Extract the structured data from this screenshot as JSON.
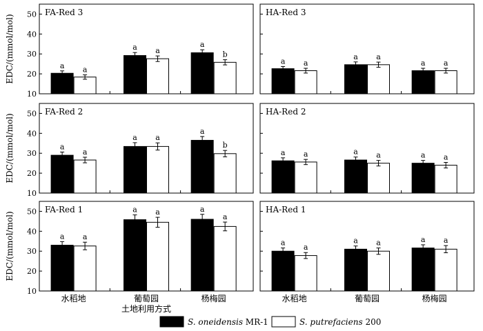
{
  "figure": {
    "y_axis_label": "EDC/(mmol/mol)",
    "x_axis_label": "土地利用方式",
    "legend": [
      {
        "name": "S. oneidensis MR-1",
        "color": "#000000",
        "italic_part": "S. oneidensis",
        "plain_part": " MR-1"
      },
      {
        "name": "S. putrefaciens 200",
        "color": "#ffffff",
        "italic_part": "S. putrefaciens",
        "plain_part": " 200"
      }
    ]
  },
  "chart_data": [
    {
      "type": "bar",
      "title": "FA-Red 3",
      "categories": [
        "水稻地",
        "葡萄园",
        "杨梅园"
      ],
      "ylim": [
        10,
        55
      ],
      "yticks": [
        10,
        20,
        30,
        40,
        50
      ],
      "series": [
        {
          "name": "S. oneidensis MR-1",
          "values": [
            20.3,
            29.2,
            30.6
          ],
          "errors": [
            1.2,
            1.5,
            1.5
          ],
          "letters": [
            "a",
            "a",
            "a"
          ]
        },
        {
          "name": "S. putrefaciens 200",
          "values": [
            18.4,
            27.6,
            25.8
          ],
          "errors": [
            1.1,
            1.4,
            1.3
          ],
          "letters": [
            "a",
            "a",
            "b"
          ]
        }
      ]
    },
    {
      "type": "bar",
      "title": "HA-Red 3",
      "categories": [
        "水稻地",
        "葡萄园",
        "杨梅园"
      ],
      "ylim": [
        10,
        55
      ],
      "yticks": [
        10,
        20,
        30,
        40,
        50
      ],
      "series": [
        {
          "name": "S. oneidensis MR-1",
          "values": [
            22.6,
            24.6,
            21.6
          ],
          "errors": [
            1.1,
            1.4,
            1.2
          ],
          "letters": [
            "a",
            "a",
            "a"
          ]
        },
        {
          "name": "S. putrefaciens 200",
          "values": [
            21.6,
            24.6,
            21.6
          ],
          "errors": [
            1.2,
            1.3,
            1.2
          ],
          "letters": [
            "a",
            "a",
            "a"
          ]
        }
      ]
    },
    {
      "type": "bar",
      "title": "FA-Red 2",
      "categories": [
        "水稻地",
        "葡萄园",
        "杨梅园"
      ],
      "ylim": [
        10,
        55
      ],
      "yticks": [
        10,
        20,
        30,
        40,
        50
      ],
      "series": [
        {
          "name": "S. oneidensis MR-1",
          "values": [
            29.0,
            33.4,
            36.5
          ],
          "errors": [
            1.6,
            1.9,
            1.9
          ],
          "letters": [
            "a",
            "a",
            "a"
          ]
        },
        {
          "name": "S. putrefaciens 200",
          "values": [
            26.6,
            33.4,
            29.8
          ],
          "errors": [
            1.4,
            1.8,
            1.6
          ],
          "letters": [
            "a",
            "a",
            "b"
          ]
        }
      ]
    },
    {
      "type": "bar",
      "title": "HA-Red 2",
      "categories": [
        "水稻地",
        "葡萄园",
        "杨梅园"
      ],
      "ylim": [
        10,
        55
      ],
      "yticks": [
        10,
        20,
        30,
        40,
        50
      ],
      "series": [
        {
          "name": "S. oneidensis MR-1",
          "values": [
            26.2,
            26.6,
            25.0
          ],
          "errors": [
            1.5,
            1.5,
            1.4
          ],
          "letters": [
            "a",
            "a",
            "a"
          ]
        },
        {
          "name": "S. putrefaciens 200",
          "values": [
            25.6,
            25.0,
            24.0
          ],
          "errors": [
            1.3,
            1.4,
            1.4
          ],
          "letters": [
            "a",
            "a",
            "a"
          ]
        }
      ]
    },
    {
      "type": "bar",
      "title": "FA-Red 1",
      "categories": [
        "水稻地",
        "葡萄园",
        "杨梅园"
      ],
      "ylim": [
        10,
        55
      ],
      "yticks": [
        10,
        20,
        30,
        40,
        50
      ],
      "series": [
        {
          "name": "S. oneidensis MR-1",
          "values": [
            33.0,
            45.8,
            46.0
          ],
          "errors": [
            1.8,
            2.4,
            2.5
          ],
          "letters": [
            "a",
            "a",
            "a"
          ]
        },
        {
          "name": "S. putrefaciens 200",
          "values": [
            32.6,
            44.5,
            42.4
          ],
          "errors": [
            1.9,
            2.5,
            2.2
          ],
          "letters": [
            "a",
            "a",
            "a"
          ]
        }
      ]
    },
    {
      "type": "bar",
      "title": "HA-Red 1",
      "categories": [
        "水稻地",
        "葡萄园",
        "杨梅园"
      ],
      "ylim": [
        10,
        55
      ],
      "yticks": [
        10,
        20,
        30,
        40,
        50
      ],
      "series": [
        {
          "name": "S. oneidensis MR-1",
          "values": [
            30.0,
            31.0,
            31.6
          ],
          "errors": [
            1.6,
            1.6,
            1.6
          ],
          "letters": [
            "a",
            "a",
            "a"
          ]
        },
        {
          "name": "S. putrefaciens 200",
          "values": [
            27.8,
            30.0,
            31.0
          ],
          "errors": [
            1.5,
            1.6,
            1.8
          ],
          "letters": [
            "a",
            "a",
            "a"
          ]
        }
      ]
    }
  ]
}
